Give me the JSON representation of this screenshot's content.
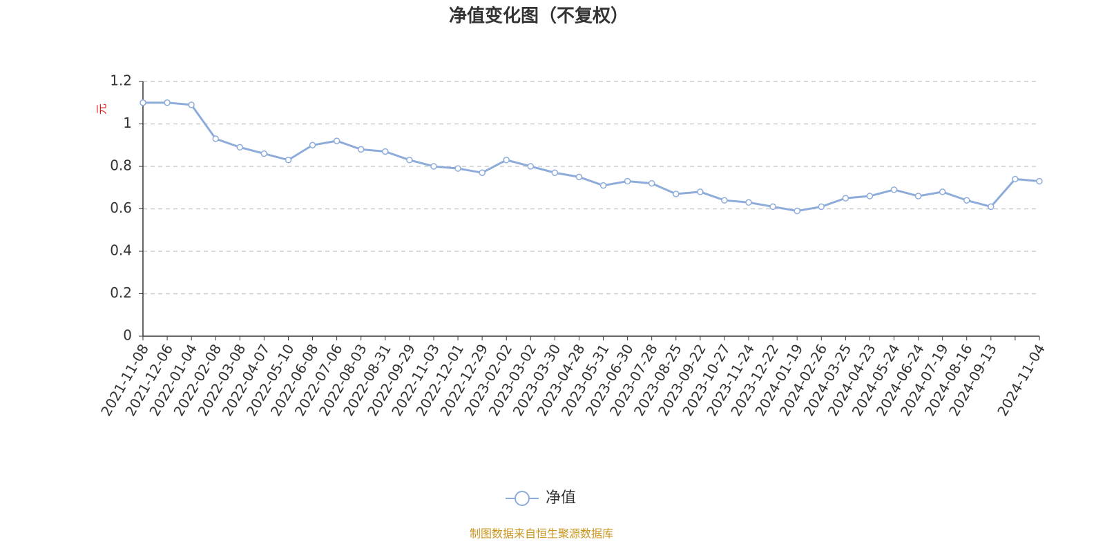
{
  "chart_data": {
    "type": "line",
    "title": "净值变化图（不复权）",
    "y_label": "元",
    "source": "制图数据来自恒生聚源数据库",
    "categories": [
      "2021-11-08",
      "2021-12-06",
      "2022-01-04",
      "2022-02-08",
      "2022-03-08",
      "2022-04-07",
      "2022-05-10",
      "2022-06-08",
      "2022-07-06",
      "2022-08-03",
      "2022-08-31",
      "2022-09-29",
      "2022-11-03",
      "2022-12-01",
      "2022-12-29",
      "2023-02-02",
      "2023-03-02",
      "2023-03-30",
      "2023-04-28",
      "2023-05-31",
      "2023-06-30",
      "2023-07-28",
      "2023-08-25",
      "2023-09-22",
      "2023-10-27",
      "2023-11-24",
      "2023-12-22",
      "2024-01-19",
      "2024-02-26",
      "2024-03-25",
      "2024-04-23",
      "2024-05-24",
      "2024-06-24",
      "2024-07-19",
      "2024-08-16",
      "2024-09-13",
      null,
      "2024-11-04"
    ],
    "series": [
      {
        "name": "净值",
        "color": "#8eacda",
        "values": [
          1.1,
          1.1,
          1.09,
          0.93,
          0.89,
          0.86,
          0.83,
          0.9,
          0.92,
          0.88,
          0.87,
          0.83,
          0.8,
          0.79,
          0.77,
          0.83,
          0.8,
          0.77,
          0.75,
          0.71,
          0.73,
          0.72,
          0.67,
          0.68,
          0.64,
          0.63,
          0.61,
          0.59,
          0.61,
          0.65,
          0.66,
          0.69,
          0.66,
          0.68,
          0.64,
          0.61,
          0.74,
          0.73
        ]
      }
    ],
    "ylim": [
      0,
      1.2
    ],
    "yticks": [
      0,
      0.2,
      0.4,
      0.6,
      0.8,
      1,
      1.2
    ],
    "grid": true
  }
}
